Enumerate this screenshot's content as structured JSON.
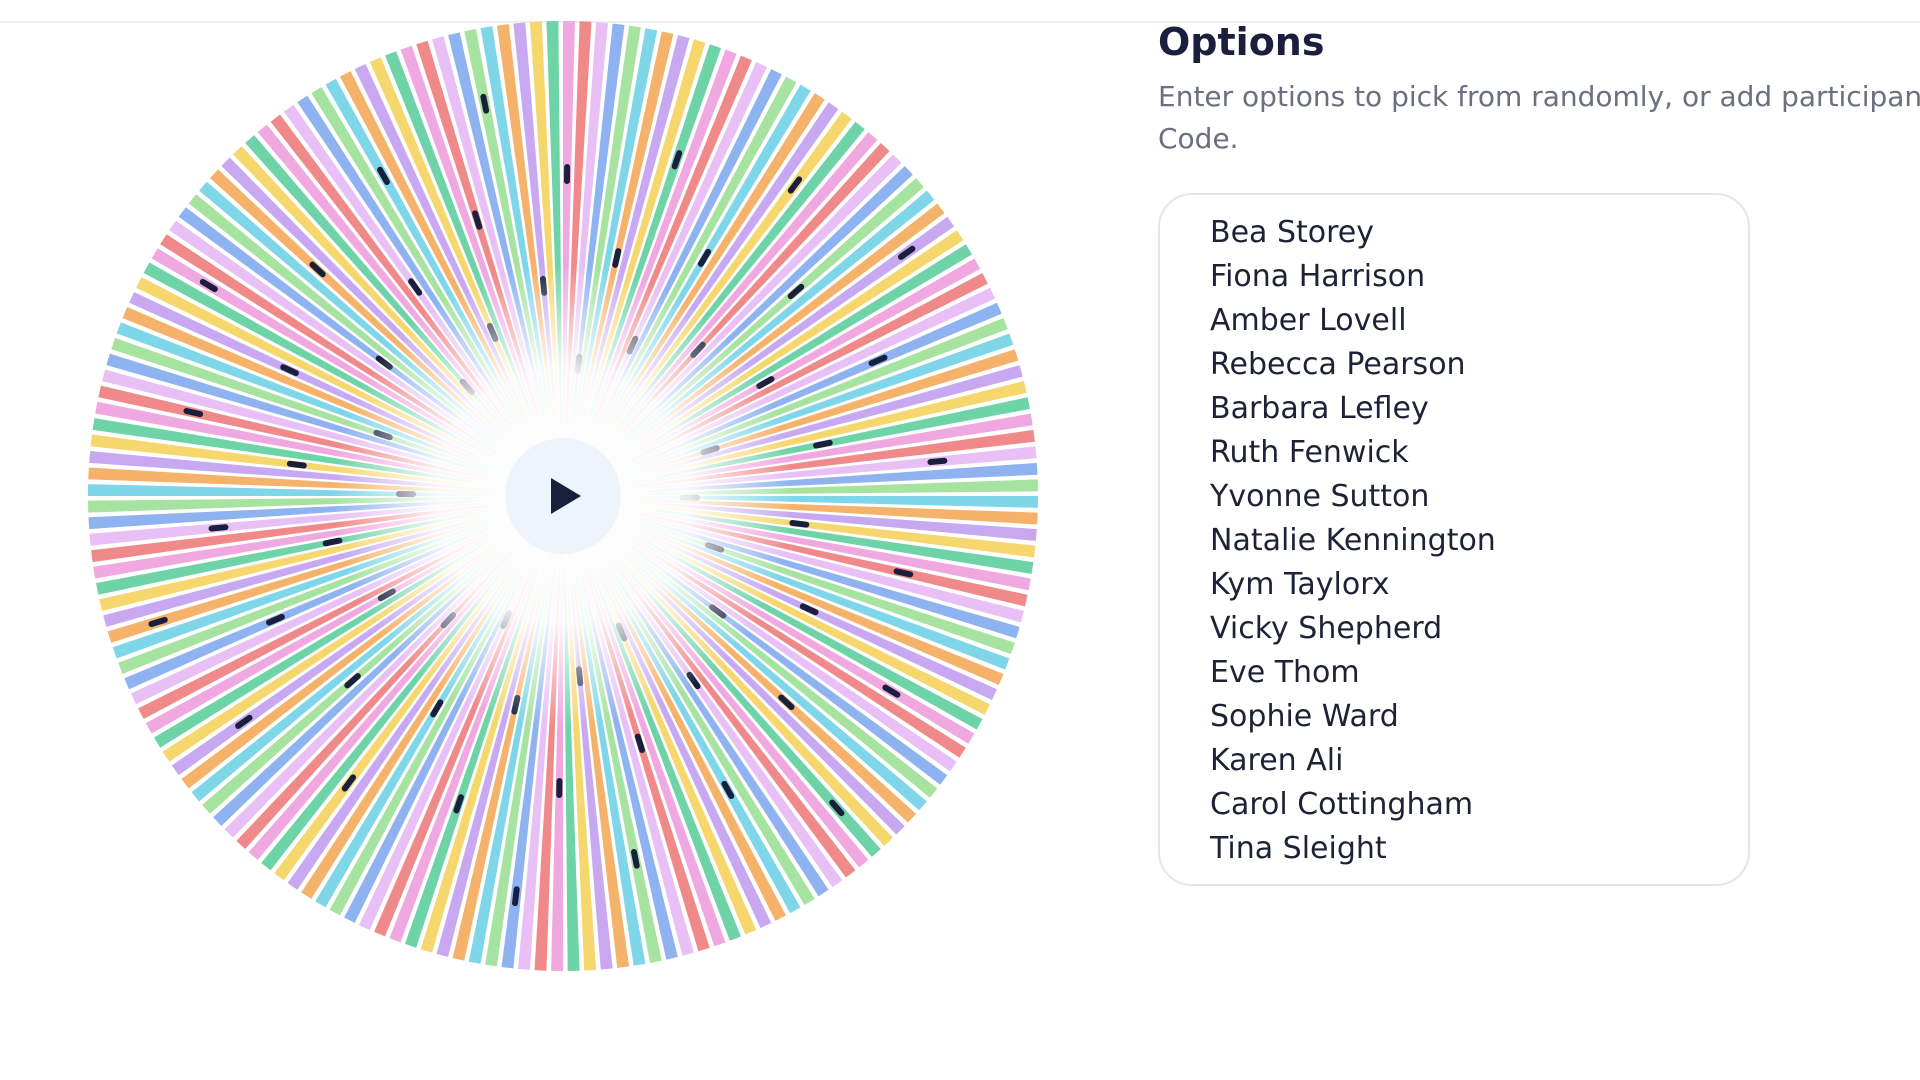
{
  "header": {
    "title": "Options",
    "description": [
      "Enter options to pick from randomly, or add participan",
      "Code."
    ]
  },
  "options": [
    "Bea Storey",
    "Fiona Harrison",
    "Amber Lovell",
    "Rebecca Pearson",
    "Barbara Lefley",
    "Ruth Fenwick",
    "Yvonne Sutton",
    "Natalie Kennington",
    "Kym Taylorx",
    "Vicky Shepherd",
    "Eve Thom",
    "Sophie Ward",
    "Karen Ali",
    "Carol Cottingham",
    "Tina Sleight"
  ]
}
